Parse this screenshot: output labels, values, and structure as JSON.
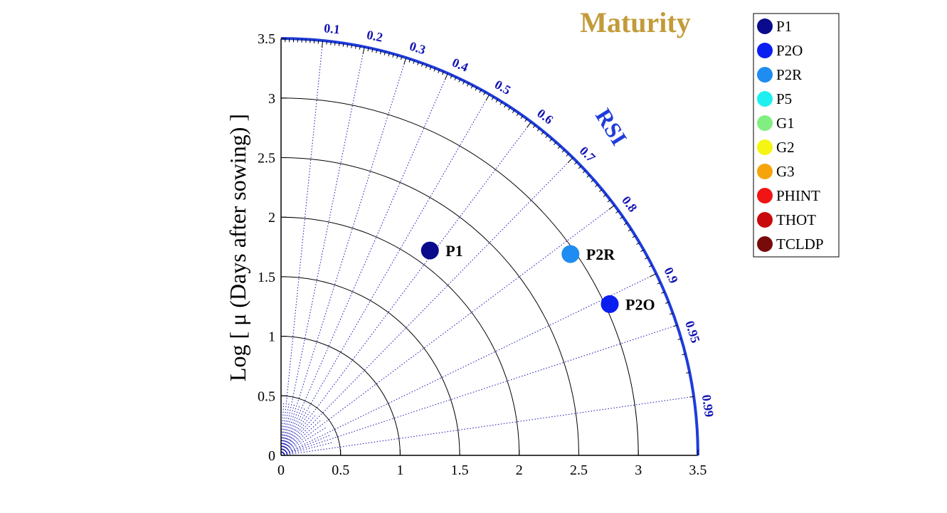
{
  "chart_data": {
    "type": "taylor_diagram",
    "title": "Maturity",
    "ylabel": "Log [ μ (Days after sowing) ]",
    "angular_axis_label": "RSI",
    "radial_range": [
      0,
      3.5
    ],
    "radial_ticks": [
      "0",
      "0.5",
      "1",
      "1.5",
      "2",
      "2.5",
      "3",
      "3.5"
    ],
    "rsi_ticks": [
      {
        "value": 0.1,
        "label": "0.1"
      },
      {
        "value": 0.2,
        "label": "0.2"
      },
      {
        "value": 0.3,
        "label": "0.3"
      },
      {
        "value": 0.4,
        "label": "0.4"
      },
      {
        "value": 0.5,
        "label": "0.5"
      },
      {
        "value": 0.6,
        "label": "0.6"
      },
      {
        "value": 0.7,
        "label": "0.7"
      },
      {
        "value": 0.8,
        "label": "0.8"
      },
      {
        "value": 0.9,
        "label": "0.9"
      },
      {
        "value": 0.95,
        "label": "0.95"
      },
      {
        "value": 0.99,
        "label": "0.99"
      }
    ],
    "points": [
      {
        "name": "P1",
        "x": 1.25,
        "y": 1.72,
        "color": "#0a0a8c"
      },
      {
        "name": "P2R",
        "x": 2.43,
        "y": 1.69,
        "color": "#1e8cf0"
      },
      {
        "name": "P2O",
        "x": 2.76,
        "y": 1.27,
        "color": "#0a1ef0"
      }
    ],
    "legend": [
      {
        "name": "P1",
        "color": "#0a0a8c"
      },
      {
        "name": "P2O",
        "color": "#0a1ef0"
      },
      {
        "name": "P2R",
        "color": "#1e8cf0"
      },
      {
        "name": "P5",
        "color": "#1ef0f0"
      },
      {
        "name": "G1",
        "color": "#80ee80"
      },
      {
        "name": "G2",
        "color": "#f5f514"
      },
      {
        "name": "G3",
        "color": "#f5a50a"
      },
      {
        "name": "PHINT",
        "color": "#f01414"
      },
      {
        "name": "THOT",
        "color": "#c80a0a"
      },
      {
        "name": "TCLDP",
        "color": "#780a0a"
      }
    ],
    "legend_placement": "right",
    "grid": true
  },
  "colors": {
    "outer_arc": "#1e3cdc",
    "rsi_lines": "#1414b4",
    "title": "#c29b3a"
  }
}
